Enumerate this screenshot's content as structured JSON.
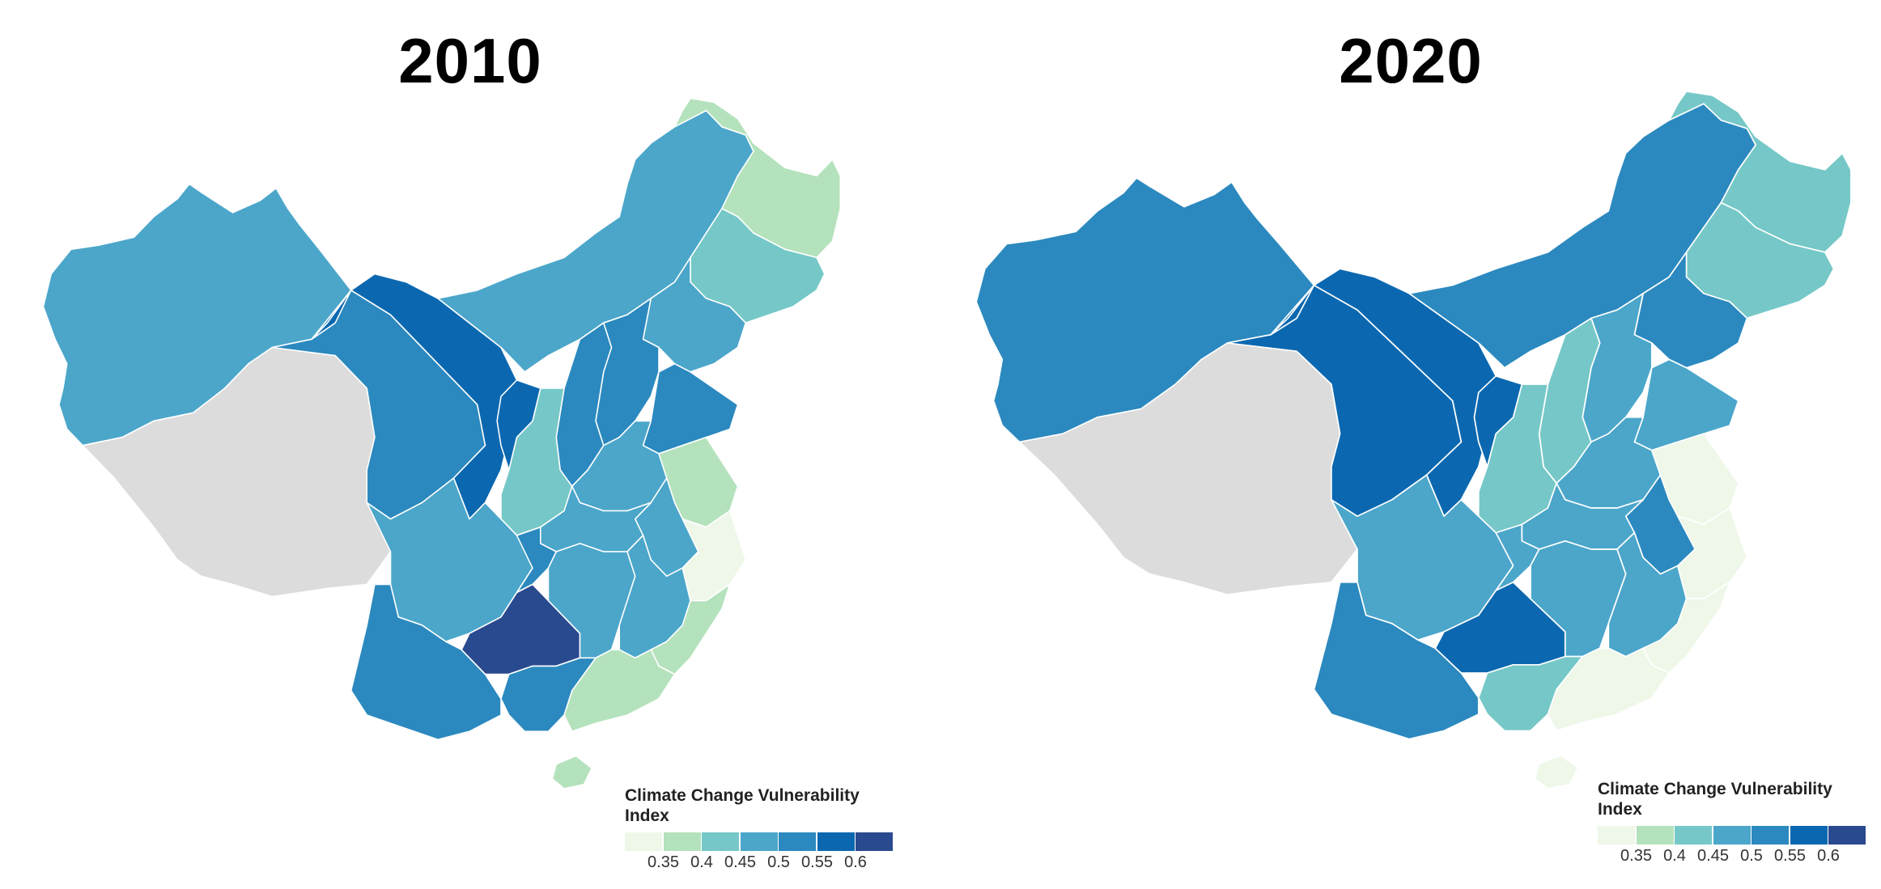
{
  "colors": {
    "c1": "#eef7e8",
    "c2": "#b4e2bc",
    "c3": "#75c8c7",
    "c4": "#4ba6ca",
    "c5": "#2b89bf",
    "c6": "#0b68b0",
    "c7": "#2a4a8f",
    "nodata": "#dcdcdc"
  },
  "legend": {
    "title": "Climate Change Vulnerability Index",
    "ticks": [
      "0.35",
      "0.4",
      "0.45",
      "0.5",
      "0.55",
      "0.6"
    ]
  },
  "maps": [
    {
      "year": "2010",
      "regions": {
        "xinjiang": "c4",
        "tibet": "nodata",
        "qinghai": "c5",
        "gansu": "c6",
        "innermongolia": "c4",
        "heilongjiang": "c2",
        "jilin": "c3",
        "liaoning": "c4",
        "beijing": "c2",
        "hebei": "c5",
        "shanxi": "c5",
        "shaanxi": "c3",
        "ningxia": "c6",
        "shandong": "c5",
        "henan": "c4",
        "jiangsu": "c2",
        "anhui": "c4",
        "hubei": "c4",
        "sichuan": "c4",
        "chongqing": "c5",
        "yunnan": "c5",
        "guizhou": "c7",
        "hunan": "c4",
        "jiangxi": "c4",
        "zhejiang": "c1",
        "fujian": "c2",
        "guangdong": "c2",
        "guangxi": "c5",
        "hainan": "c2"
      }
    },
    {
      "year": "2020",
      "regions": {
        "xinjiang": "c5",
        "tibet": "nodata",
        "qinghai": "c6",
        "gansu": "c6",
        "innermongolia": "c5",
        "heilongjiang": "c3",
        "jilin": "c3",
        "liaoning": "c5",
        "beijing": "c2",
        "hebei": "c4",
        "shanxi": "c3",
        "shaanxi": "c3",
        "ningxia": "c6",
        "shandong": "c4",
        "henan": "c4",
        "jiangsu": "c1",
        "anhui": "c5",
        "hubei": "c4",
        "sichuan": "c4",
        "chongqing": "c4",
        "yunnan": "c5",
        "guizhou": "c6",
        "hunan": "c4",
        "jiangxi": "c4",
        "zhejiang": "c1",
        "fujian": "c1",
        "guangdong": "c1",
        "guangxi": "c3",
        "hainan": "c1"
      }
    }
  ]
}
